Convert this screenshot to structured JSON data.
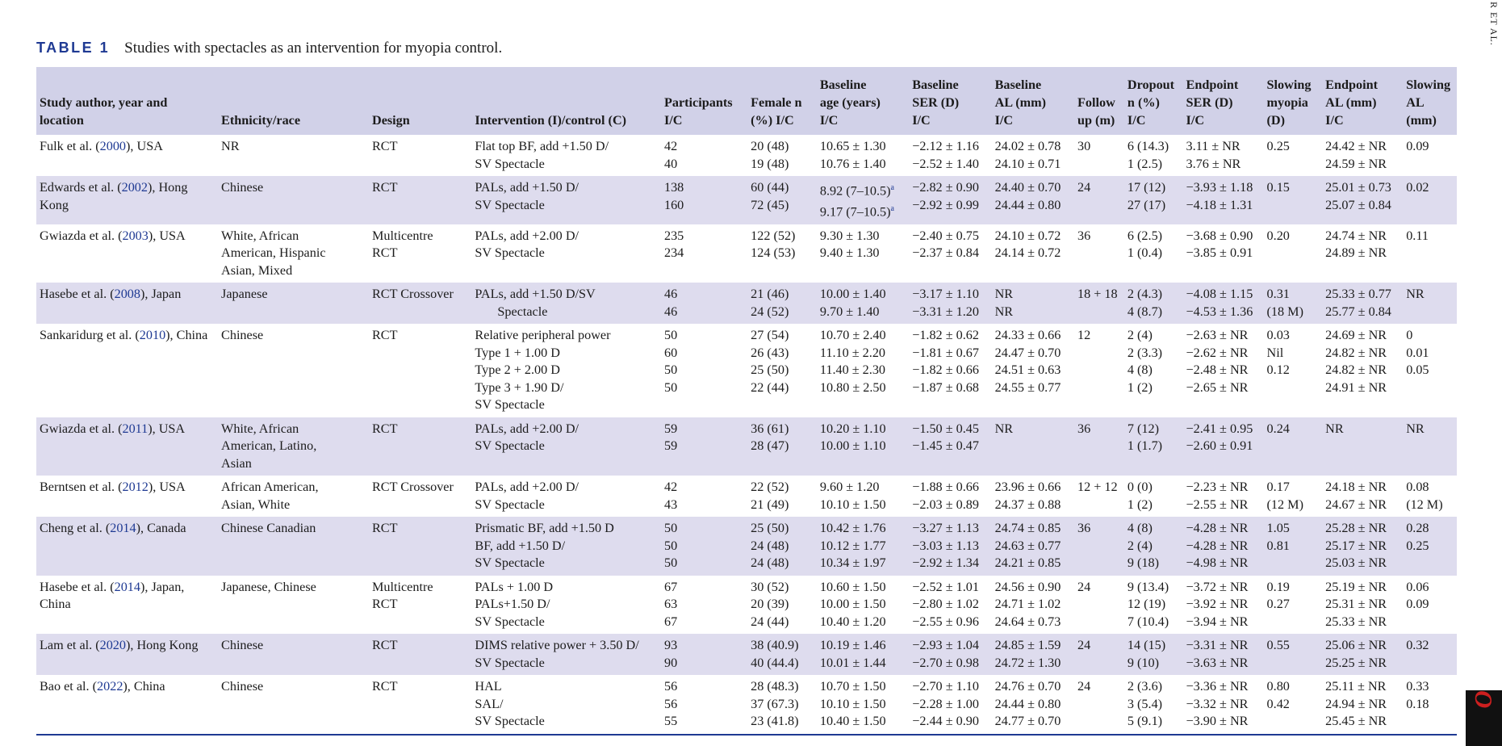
{
  "side_header": "R ET AL.",
  "side_journal": "Acta O",
  "caption": {
    "label": "TABLE 1",
    "text": "Studies with spectacles as an intervention for myopia control."
  },
  "headers": [
    [
      "Study author, year and",
      "location"
    ],
    [
      "Ethnicity/race"
    ],
    [
      "Design"
    ],
    [
      "Intervention (I)/control (C)"
    ],
    [
      "Participants",
      "I/C"
    ],
    [
      "Female n",
      "(%) I/C"
    ],
    [
      "Baseline",
      "age (years)",
      "I/C"
    ],
    [
      "Baseline",
      "SER (D)",
      "I/C"
    ],
    [
      "Baseline",
      "AL (mm)",
      "I/C"
    ],
    [
      "Follow",
      "up (m)"
    ],
    [
      "Dropout",
      "n (%)",
      "I/C"
    ],
    [
      "Endpoint",
      "SER (D)",
      "I/C"
    ],
    [
      "Slowing",
      "myopia",
      "(D)"
    ],
    [
      "Endpoint",
      "AL (mm)",
      "I/C"
    ],
    [
      "Slowing",
      "AL",
      "(mm)"
    ]
  ],
  "rows": [
    {
      "author": "Fulk et al. (",
      "year": "2000",
      "location": "), USA",
      "ethnicity": [
        "NR"
      ],
      "design": [
        "RCT"
      ],
      "intervention": [
        "Flat top BF, add +1.50 D/",
        "SV Spectacle"
      ],
      "participants": [
        "42",
        "40"
      ],
      "female": [
        "20 (48)",
        "19 (48)"
      ],
      "age": [
        "10.65 ± 1.30",
        "10.76 ± 1.40"
      ],
      "ser": [
        "−2.12 ± 1.16",
        "−2.52 ± 1.40"
      ],
      "al": [
        "24.02 ± 0.78",
        "24.10 ± 0.71"
      ],
      "follow": [
        "30"
      ],
      "dropout": [
        "6 (14.3)",
        "1 (2.5)"
      ],
      "end_ser": [
        "3.11 ± NR",
        "3.76 ± NR"
      ],
      "slow_myopia": [
        "0.25"
      ],
      "end_al": [
        "24.42 ± NR",
        "24.59 ± NR"
      ],
      "slow_al": [
        "0.09"
      ]
    },
    {
      "author": "Edwards et al. (",
      "year": "2002",
      "location": "), Hong Kong",
      "ethnicity": [
        "Chinese"
      ],
      "design": [
        "RCT"
      ],
      "intervention": [
        "PALs, add +1.50 D/",
        "SV Spectacle"
      ],
      "participants": [
        "138",
        "160"
      ],
      "female": [
        "60 (44)",
        "72 (45)"
      ],
      "age": [
        "8.92 (7–10.5)",
        "9.17 (7–10.5)"
      ],
      "age_sup": "a",
      "ser": [
        "−2.82 ± 0.90",
        "−2.92 ± 0.99"
      ],
      "al": [
        "24.40 ± 0.70",
        "24.44 ± 0.80"
      ],
      "follow": [
        "24"
      ],
      "dropout": [
        "17 (12)",
        "27 (17)"
      ],
      "end_ser": [
        "−3.93 ± 1.18",
        "−4.18 ± 1.31"
      ],
      "slow_myopia": [
        "0.15"
      ],
      "end_al": [
        "25.01 ± 0.73",
        "25.07 ± 0.84"
      ],
      "slow_al": [
        "0.02"
      ]
    },
    {
      "author": "Gwiazda et al. (",
      "year": "2003",
      "location": "), USA",
      "ethnicity": [
        "White, African",
        "American, Hispanic",
        "Asian, Mixed"
      ],
      "design": [
        "Multicentre",
        "RCT"
      ],
      "intervention": [
        "PALs, add +2.00 D/",
        "SV Spectacle"
      ],
      "participants": [
        "235",
        "234"
      ],
      "female": [
        "122 (52)",
        "124 (53)"
      ],
      "age": [
        "9.30 ± 1.30",
        "9.40 ± 1.30"
      ],
      "ser": [
        "−2.40 ± 0.75",
        "−2.37 ± 0.84"
      ],
      "al": [
        "24.10 ± 0.72",
        "24.14 ± 0.72"
      ],
      "follow": [
        "36"
      ],
      "dropout": [
        "6 (2.5)",
        "1 (0.4)"
      ],
      "end_ser": [
        "−3.68 ± 0.90",
        "−3.85 ± 0.91"
      ],
      "slow_myopia": [
        "0.20"
      ],
      "end_al": [
        "24.74 ± NR",
        "24.89 ± NR"
      ],
      "slow_al": [
        "0.11"
      ]
    },
    {
      "author": "Hasebe et al. (",
      "year": "2008",
      "location": "), Japan",
      "ethnicity": [
        "Japanese"
      ],
      "design": [
        "RCT Crossover"
      ],
      "intervention": [
        "PALs, add +1.50 D/SV",
        "Spectacle"
      ],
      "participants": [
        "46",
        "46"
      ],
      "female": [
        "21 (46)",
        "24 (52)"
      ],
      "age": [
        "10.00 ± 1.40",
        "9.70 ± 1.40"
      ],
      "ser": [
        "−3.17 ± 1.10",
        "−3.31 ± 1.20"
      ],
      "al": [
        "NR",
        "NR"
      ],
      "follow": [
        "18 + 18"
      ],
      "dropout": [
        "2 (4.3)",
        "4 (8.7)"
      ],
      "end_ser": [
        "−4.08 ± 1.15",
        "−4.53 ± 1.36"
      ],
      "slow_myopia": [
        "0.31",
        "(18 M)"
      ],
      "end_al": [
        "25.33 ± 0.77",
        "25.77 ± 0.84"
      ],
      "slow_al": [
        "NR"
      ]
    },
    {
      "author": "Sankaridurg et al. (",
      "year": "2010",
      "location": "), China",
      "ethnicity": [
        "Chinese"
      ],
      "design": [
        "RCT"
      ],
      "intervention": [
        "Relative peripheral power",
        "Type 1 + 1.00 D",
        "Type 2 + 2.00 D",
        "Type 3 + 1.90 D/",
        "SV Spectacle"
      ],
      "participants": [
        "50",
        "60",
        "50",
        "50"
      ],
      "female": [
        "27 (54)",
        "26 (43)",
        "25 (50)",
        "22 (44)"
      ],
      "age": [
        "10.70 ± 2.40",
        "11.10 ± 2.20",
        "11.40 ± 2.30",
        "10.80 ± 2.50"
      ],
      "ser": [
        "−1.82 ± 0.62",
        "−1.81 ± 0.67",
        "−1.82 ± 0.66",
        "−1.87 ± 0.68"
      ],
      "al": [
        "24.33 ± 0.66",
        "24.47 ± 0.70",
        "24.51 ± 0.63",
        "24.55 ± 0.77"
      ],
      "follow": [
        "12"
      ],
      "dropout": [
        "2 (4)",
        "2 (3.3)",
        "4 (8)",
        "1 (2)"
      ],
      "end_ser": [
        "−2.63 ± NR",
        "−2.62 ± NR",
        "−2.48 ± NR",
        "−2.65 ± NR"
      ],
      "slow_myopia": [
        "0.03",
        "Nil",
        "0.12"
      ],
      "end_al": [
        "24.69 ± NR",
        "24.82 ± NR",
        "24.82 ± NR",
        "24.91 ± NR"
      ],
      "slow_al": [
        "0",
        "0.01",
        "0.05"
      ]
    },
    {
      "author": "Gwiazda et al. (",
      "year": "2011",
      "location": "), USA",
      "ethnicity": [
        "White, African",
        "American, Latino,",
        "Asian"
      ],
      "design": [
        "RCT"
      ],
      "intervention": [
        "PALs, add +2.00 D/",
        "SV Spectacle"
      ],
      "participants": [
        "59",
        "59"
      ],
      "female": [
        "36 (61)",
        "28 (47)"
      ],
      "age": [
        "10.20 ± 1.10",
        "10.00 ± 1.10"
      ],
      "ser": [
        "−1.50 ± 0.45",
        "−1.45 ± 0.47"
      ],
      "al": [
        "NR"
      ],
      "follow": [
        "36"
      ],
      "dropout": [
        "7 (12)",
        "1 (1.7)"
      ],
      "end_ser": [
        "−2.41 ± 0.95",
        "−2.60 ± 0.91"
      ],
      "slow_myopia": [
        "0.24"
      ],
      "end_al": [
        "NR"
      ],
      "slow_al": [
        "NR"
      ]
    },
    {
      "author": "Berntsen et al. (",
      "year": "2012",
      "location": "), USA",
      "ethnicity": [
        "African American,",
        "Asian, White"
      ],
      "design": [
        "RCT Crossover"
      ],
      "intervention": [
        "PALs, add +2.00 D/",
        "SV Spectacle"
      ],
      "participants": [
        "42",
        "43"
      ],
      "female": [
        "22 (52)",
        "21 (49)"
      ],
      "age": [
        "9.60 ± 1.20",
        "10.10 ± 1.50"
      ],
      "ser": [
        "−1.88 ± 0.66",
        "−2.03 ± 0.89"
      ],
      "al": [
        "23.96 ± 0.66",
        "24.37 ± 0.88"
      ],
      "follow": [
        "12 + 12"
      ],
      "dropout": [
        "0 (0)",
        "1 (2)"
      ],
      "end_ser": [
        "−2.23 ± NR",
        "−2.55 ± NR"
      ],
      "slow_myopia": [
        "0.17",
        "(12 M)"
      ],
      "end_al": [
        "24.18 ± NR",
        "24.67 ± NR"
      ],
      "slow_al": [
        "0.08",
        "(12 M)"
      ]
    },
    {
      "author": "Cheng et al. (",
      "year": "2014",
      "location": "), Canada",
      "ethnicity": [
        "Chinese Canadian"
      ],
      "design": [
        "RCT"
      ],
      "intervention": [
        "Prismatic BF, add +1.50 D",
        "BF, add +1.50 D/",
        "SV Spectacle"
      ],
      "participants": [
        "50",
        "50",
        "50"
      ],
      "female": [
        "25 (50)",
        "24 (48)",
        "24 (48)"
      ],
      "age": [
        "10.42 ± 1.76",
        "10.12 ± 1.77",
        "10.34 ± 1.97"
      ],
      "ser": [
        "−3.27 ± 1.13",
        "−3.03 ± 1.13",
        "−2.92 ± 1.34"
      ],
      "al": [
        "24.74 ± 0.85",
        "24.63 ± 0.77",
        "24.21 ± 0.85"
      ],
      "follow": [
        "36"
      ],
      "dropout": [
        "4 (8)",
        "2 (4)",
        "9 (18)"
      ],
      "end_ser": [
        "−4.28 ± NR",
        "−4.28 ± NR",
        "−4.98 ± NR"
      ],
      "slow_myopia": [
        "1.05",
        "0.81"
      ],
      "end_al": [
        "25.28 ± NR",
        "25.17 ± NR",
        "25.03 ± NR"
      ],
      "slow_al": [
        "0.28",
        "0.25"
      ]
    },
    {
      "author": "Hasebe et al. (",
      "year": "2014",
      "location": "), Japan, China",
      "ethnicity": [
        "Japanese, Chinese"
      ],
      "design": [
        "Multicentre",
        "RCT"
      ],
      "intervention": [
        "PALs + 1.00 D",
        "PALs+1.50 D/",
        "SV Spectacle"
      ],
      "participants": [
        "67",
        "63",
        "67"
      ],
      "female": [
        "30 (52)",
        "20 (39)",
        "24 (44)"
      ],
      "age": [
        "10.60 ± 1.50",
        "10.00 ± 1.50",
        "10.40 ± 1.20"
      ],
      "ser": [
        "−2.52 ± 1.01",
        "−2.80 ± 1.02",
        "−2.55 ± 0.96"
      ],
      "al": [
        "24.56 ± 0.90",
        "24.71 ± 1.02",
        "24.64 ± 0.73"
      ],
      "follow": [
        "24"
      ],
      "dropout": [
        "9 (13.4)",
        "12 (19)",
        "7 (10.4)"
      ],
      "end_ser": [
        "−3.72 ± NR",
        "−3.92 ± NR",
        "−3.94 ± NR"
      ],
      "slow_myopia": [
        "0.19",
        "0.27"
      ],
      "end_al": [
        "25.19 ± NR",
        "25.31 ± NR",
        "25.33 ± NR"
      ],
      "slow_al": [
        "0.06",
        "0.09"
      ]
    },
    {
      "author": "Lam et al. (",
      "year": "2020",
      "location": "), Hong Kong",
      "ethnicity": [
        "Chinese"
      ],
      "design": [
        "RCT"
      ],
      "intervention": [
        "DIMS relative power + 3.50 D/",
        "SV Spectacle"
      ],
      "participants": [
        "93",
        "90"
      ],
      "female": [
        "38 (40.9)",
        "40 (44.4)"
      ],
      "age": [
        "10.19 ± 1.46",
        "10.01 ± 1.44"
      ],
      "ser": [
        "−2.93 ± 1.04",
        "−2.70 ± 0.98"
      ],
      "al": [
        "24.85 ± 1.59",
        "24.72 ± 1.30"
      ],
      "follow": [
        "24"
      ],
      "dropout": [
        "14 (15)",
        "9 (10)"
      ],
      "end_ser": [
        "−3.31 ± NR",
        "−3.63 ± NR"
      ],
      "slow_myopia": [
        "0.55"
      ],
      "end_al": [
        "25.06 ± NR",
        "25.25 ± NR"
      ],
      "slow_al": [
        "0.32"
      ]
    },
    {
      "author": "Bao et al. (",
      "year": "2022",
      "location": "), China",
      "ethnicity": [
        "Chinese"
      ],
      "design": [
        "RCT"
      ],
      "intervention": [
        "HAL",
        "SAL/",
        "SV Spectacle"
      ],
      "participants": [
        "56",
        "56",
        "55"
      ],
      "female": [
        "28 (48.3)",
        "37 (67.3)",
        "23 (41.8)"
      ],
      "age": [
        "10.70 ± 1.50",
        "10.10 ± 1.50",
        "10.40 ± 1.50"
      ],
      "ser": [
        "−2.70 ± 1.10",
        "−2.28 ± 1.00",
        "−2.44 ± 0.90"
      ],
      "al": [
        "24.76 ± 0.70",
        "24.44 ± 0.80",
        "24.77 ± 0.70"
      ],
      "follow": [
        "24"
      ],
      "dropout": [
        "2 (3.6)",
        "3 (5.4)",
        "5 (9.1)"
      ],
      "end_ser": [
        "−3.36 ± NR",
        "−3.32 ± NR",
        "−3.90 ± NR"
      ],
      "slow_myopia": [
        "0.80",
        "0.42"
      ],
      "end_al": [
        "25.11 ± NR",
        "24.94 ± NR",
        "25.45 ± NR"
      ],
      "slow_al": [
        "0.33",
        "0.18"
      ]
    }
  ]
}
